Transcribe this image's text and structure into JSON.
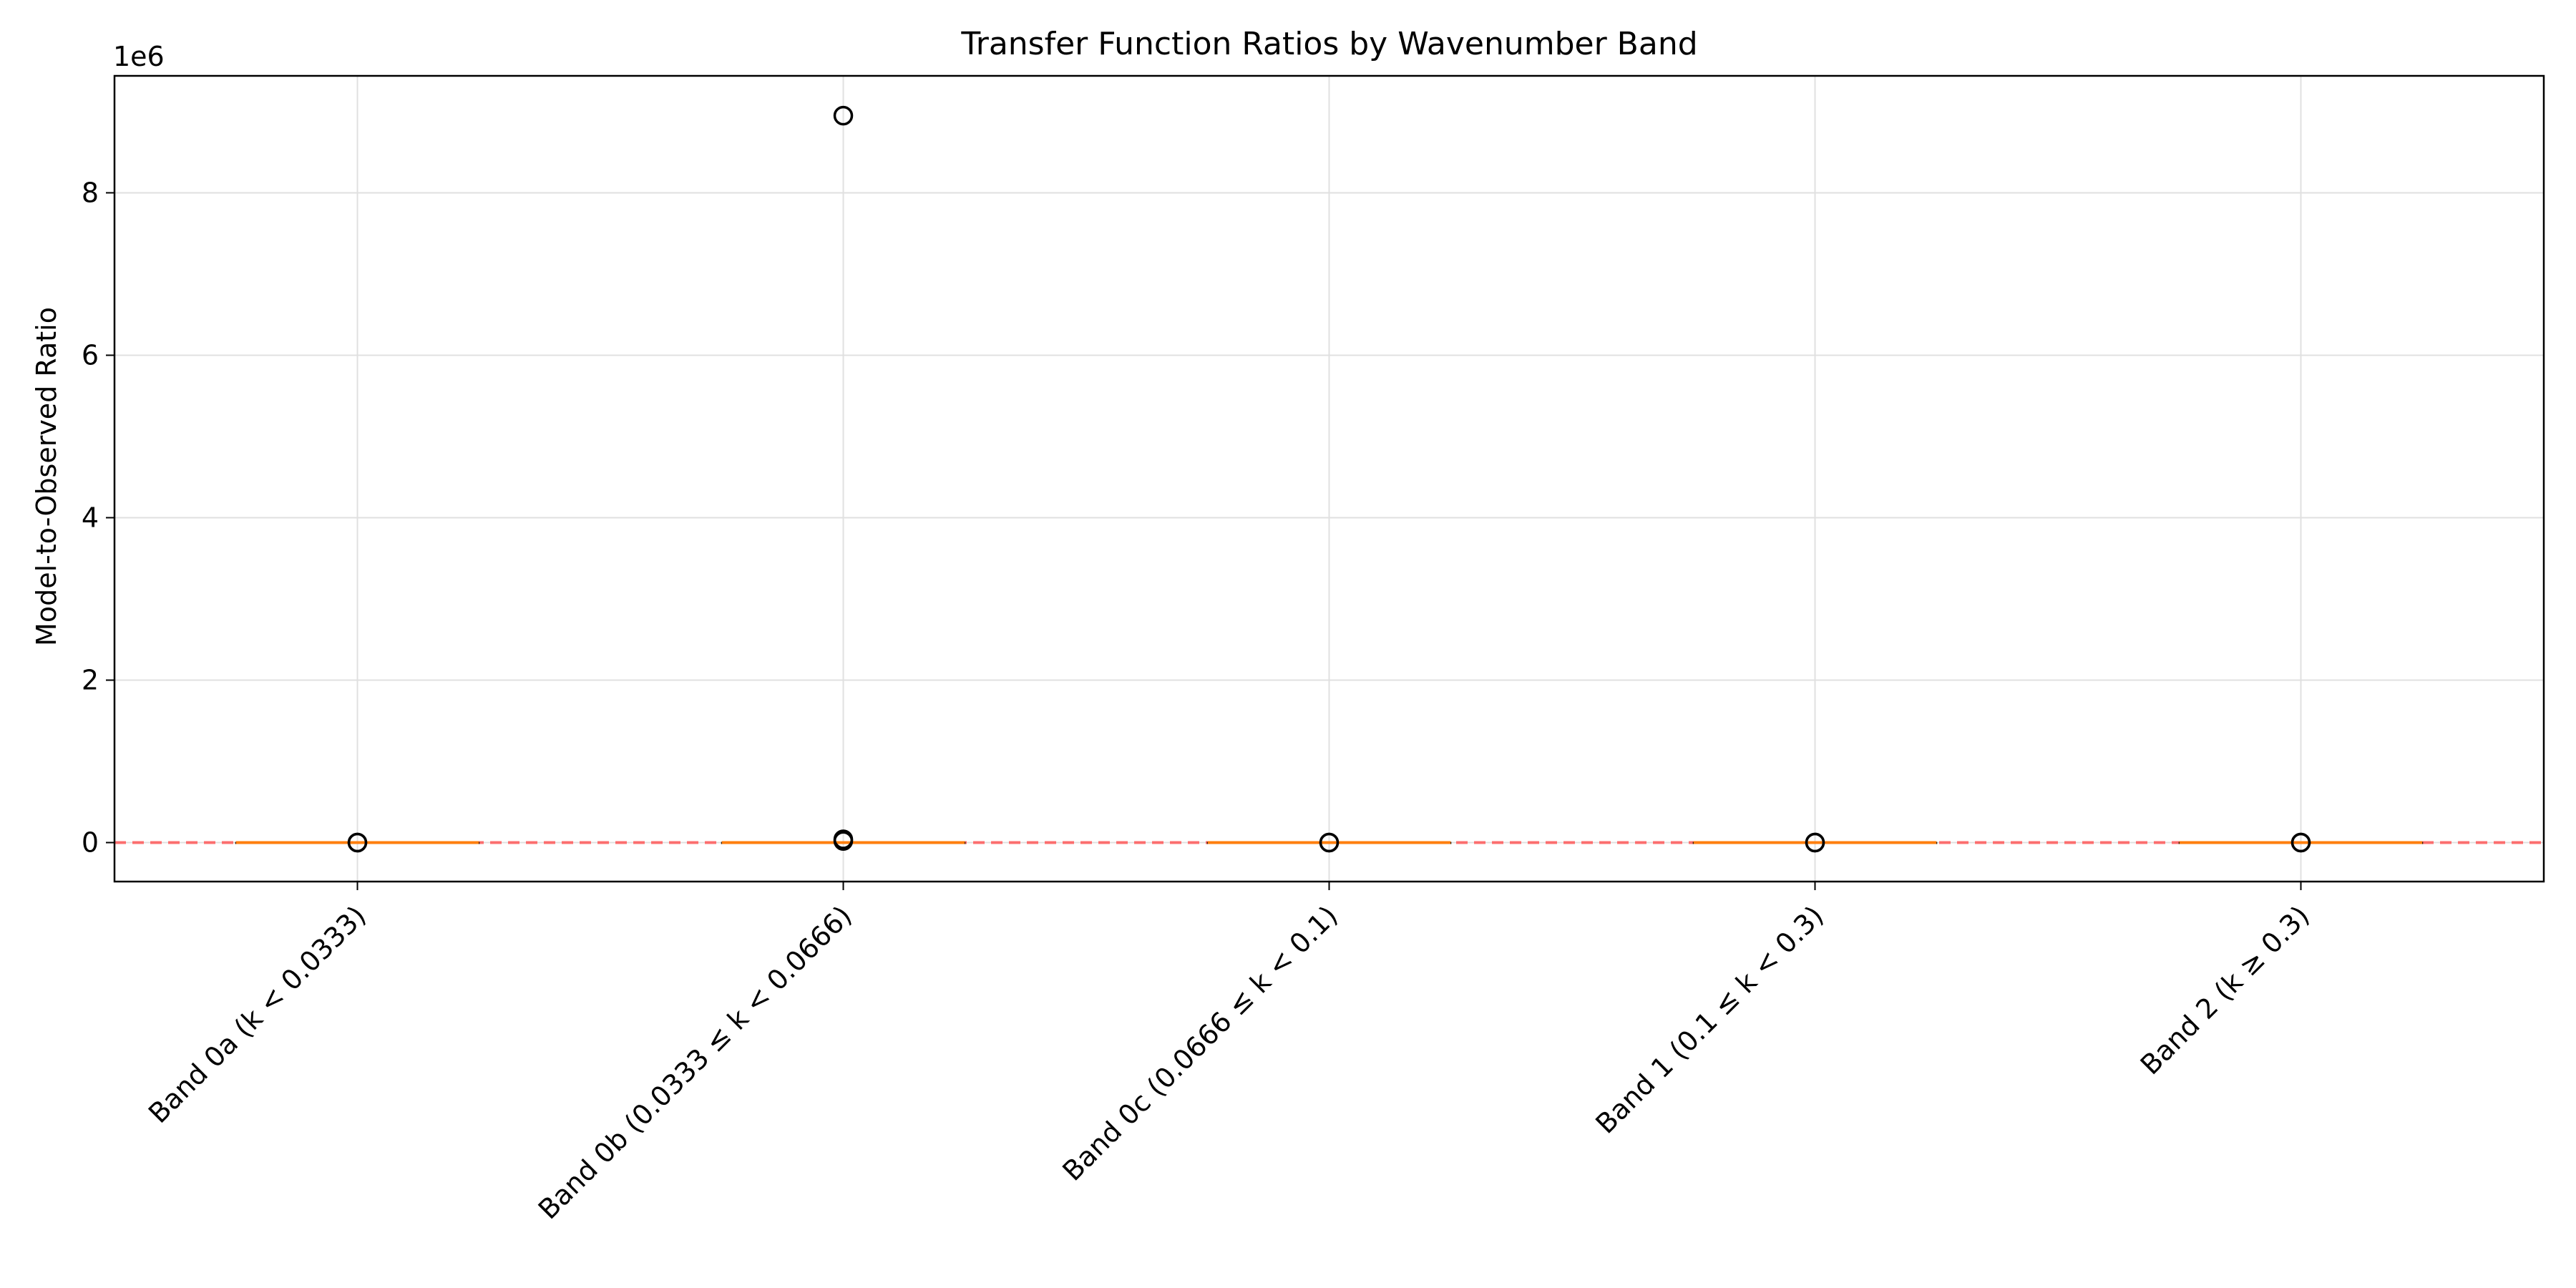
{
  "chart_data": {
    "type": "box",
    "title": "Transfer Function Ratios by Wavenumber Band",
    "xlabel": "",
    "ylabel": "Model-to-Observed Ratio",
    "y_offset_label": "1e6",
    "y_scale_factor": 1000000,
    "ylim": [
      -480000,
      9440000
    ],
    "yticks": [
      0,
      2000000,
      4000000,
      6000000,
      8000000
    ],
    "ytick_labels": [
      "0",
      "2",
      "4",
      "6",
      "8"
    ],
    "grid": true,
    "reference_line": {
      "y": 1,
      "style": "dashed",
      "color": "#ff5a5a"
    },
    "categories": [
      "Band 0a (k < 0.0333)",
      "Band 0b (0.0333 ≤ k < 0.0666)",
      "Band 0c (0.0666 ≤ k < 0.1)",
      "Band 1 (0.1 ≤ k < 0.3)",
      "Band 2 (k ≥ 0.3)"
    ],
    "boxes": [
      {
        "median": 1,
        "q1": 0,
        "q3": 2,
        "whisker_low": 0,
        "whisker_high": 5,
        "outliers": [
          10,
          20
        ]
      },
      {
        "median": 1,
        "q1": 0,
        "q3": 2,
        "whisker_low": 0,
        "whisker_high": 5,
        "outliers": [
          20000,
          40000,
          8950000
        ]
      },
      {
        "median": 1,
        "q1": 0,
        "q3": 2,
        "whisker_low": 0,
        "whisker_high": 5,
        "outliers": [
          10,
          20
        ]
      },
      {
        "median": 1,
        "q1": 0,
        "q3": 2,
        "whisker_low": 0,
        "whisker_high": 5,
        "outliers": [
          10,
          20
        ]
      },
      {
        "median": 1,
        "q1": 0,
        "q3": 2,
        "whisker_low": 0,
        "whisker_high": 5,
        "outliers": [
          10,
          20
        ]
      }
    ],
    "colors": {
      "box": "#000000",
      "median": "#ff7f0e",
      "outlier": "#000000",
      "grid": "#e0e0e0"
    }
  }
}
